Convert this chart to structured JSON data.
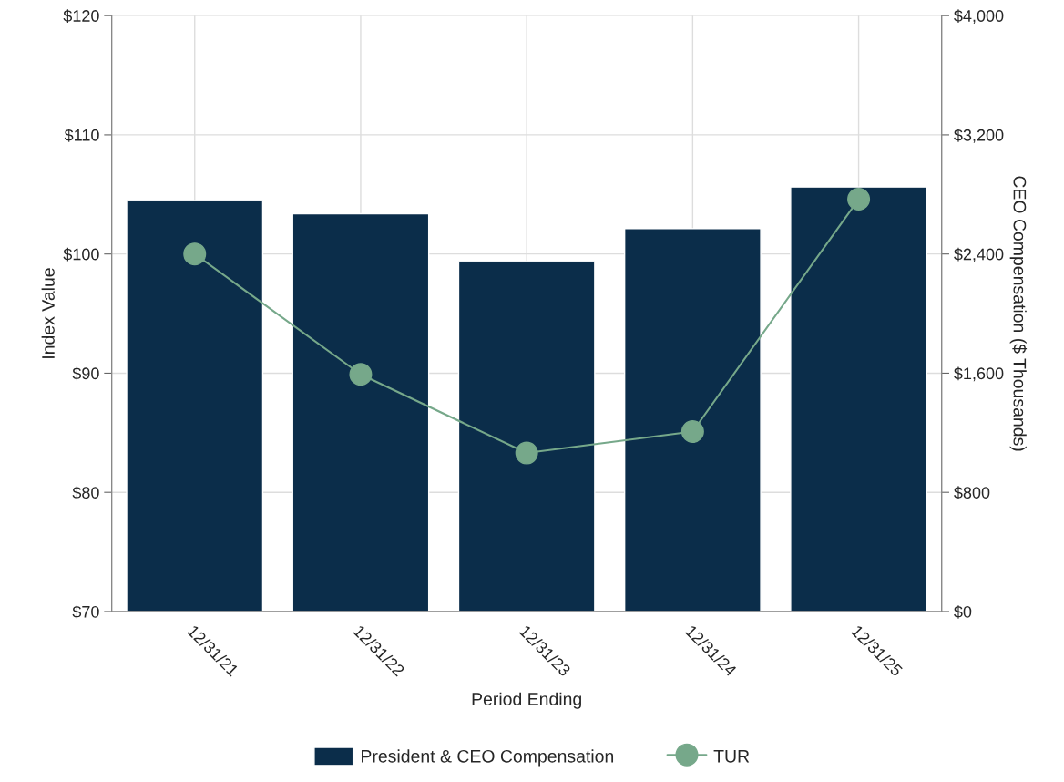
{
  "chart_data": {
    "type": "bar",
    "xlabel": "Period Ending",
    "ylabel": "Index Value",
    "y2label": "CEO Compensation ($ Thousands)",
    "categories": [
      "12/31/21",
      "12/31/22",
      "12/31/23",
      "12/31/24",
      "12/31/25"
    ],
    "series": [
      {
        "name": "President & CEO Compensation",
        "axis": "y2",
        "color": "#0b2d4a",
        "values": [
          2760,
          2670,
          2350,
          2570,
          2850
        ]
      },
      {
        "name": "TUR",
        "type": "line",
        "axis": "y",
        "color": "#76a88a",
        "marker": "circle",
        "values": [
          100.0,
          89.9,
          83.3,
          85.1,
          104.6
        ]
      }
    ],
    "ylim": [
      70,
      120
    ],
    "yticks": [
      {
        "value": 70,
        "label": "$70"
      },
      {
        "value": 80,
        "label": "$80"
      },
      {
        "value": 90,
        "label": "$90"
      },
      {
        "value": 100,
        "label": "$100"
      },
      {
        "value": 110,
        "label": "$110"
      },
      {
        "value": 120,
        "label": "$120"
      }
    ],
    "y2lim": [
      0,
      4000
    ],
    "y2ticks": [
      {
        "value": 0,
        "label": "$0"
      },
      {
        "value": 800,
        "label": "$800"
      },
      {
        "value": 1600,
        "label": "$1,600"
      },
      {
        "value": 2400,
        "label": "$2,400"
      },
      {
        "value": 3200,
        "label": "$3,200"
      },
      {
        "value": 4000,
        "label": "$4,000"
      }
    ],
    "grid": true,
    "legend": "bottom"
  }
}
